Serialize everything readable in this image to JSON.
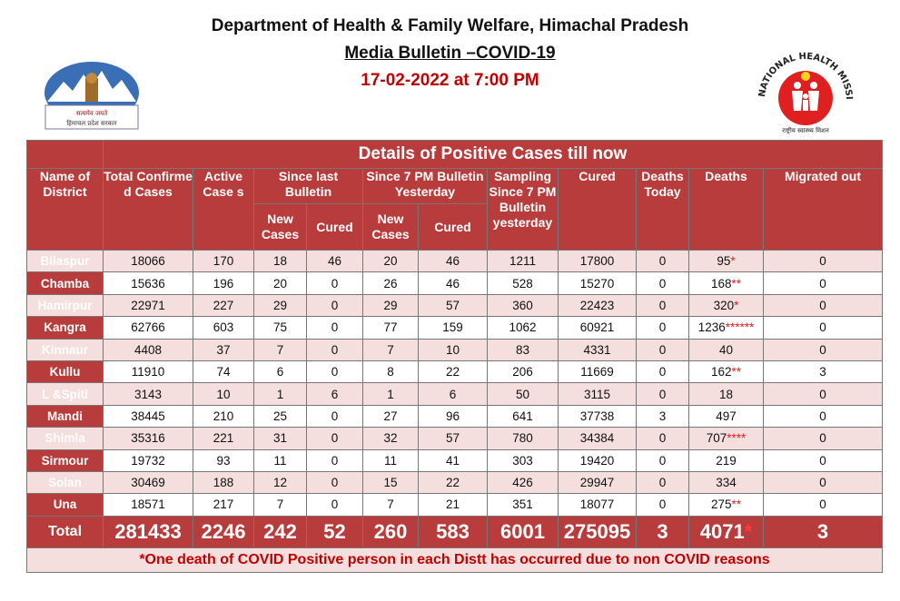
{
  "header": {
    "line1": "Department of Health & Family Welfare, Himachal Pradesh",
    "line2": "Media Bulletin –COVID-19",
    "line3": "17-02-2022 at 7:00 PM"
  },
  "logos": {
    "left_text1": "सत्यमेव जयते",
    "left_text2": "हिमाचल प्रदेश सरकार",
    "right_ring": "NATIONAL HEALTH MISSION",
    "right_caption": "राष्ट्रीय स्वास्थ्य मिशन",
    "accent": "#e02020"
  },
  "table": {
    "title": "Details of Positive Cases till now",
    "headers": {
      "district": "Name of District",
      "total_confirmed": "Total Confirme d Cases",
      "active": "Active Case s",
      "since_last": "Since last Bulletin",
      "since_7pm": "Since 7 PM Bulletin Yesterday",
      "new_cases": "New Cases",
      "cured": "Cured",
      "sampling": "Sampling Since 7 PM Bulletin yesterday",
      "cured_total": "Cured",
      "deaths_today": "Deaths Today",
      "deaths": "Deaths",
      "migrated": "Migrated out"
    },
    "rows": [
      {
        "district": "Bilaspur",
        "total": "18066",
        "active": "170",
        "l_new": "18",
        "l_cured": "46",
        "y_new": "20",
        "y_cured": "46",
        "sampling": "1211",
        "cured": "17800",
        "deaths_today": "0",
        "deaths": "95",
        "deaths_mark": "*",
        "migrated": "0"
      },
      {
        "district": "Chamba",
        "total": "15636",
        "active": "196",
        "l_new": "20",
        "l_cured": "0",
        "y_new": "26",
        "y_cured": "46",
        "sampling": "528",
        "cured": "15270",
        "deaths_today": "0",
        "deaths": "168",
        "deaths_mark": "**",
        "migrated": "0"
      },
      {
        "district": "Hamirpur",
        "total": "22971",
        "active": "227",
        "l_new": "29",
        "l_cured": "0",
        "y_new": "29",
        "y_cured": "57",
        "sampling": "360",
        "cured": "22423",
        "deaths_today": "0",
        "deaths": "320",
        "deaths_mark": "*",
        "migrated": "0"
      },
      {
        "district": "Kangra",
        "total": "62766",
        "active": "603",
        "l_new": "75",
        "l_cured": "0",
        "y_new": "77",
        "y_cured": "159",
        "sampling": "1062",
        "cured": "60921",
        "deaths_today": "0",
        "deaths": "1236",
        "deaths_mark": "******",
        "migrated": "0"
      },
      {
        "district": "Kinnaur",
        "total": "4408",
        "active": "37",
        "l_new": "7",
        "l_cured": "0",
        "y_new": "7",
        "y_cured": "10",
        "sampling": "83",
        "cured": "4331",
        "deaths_today": "0",
        "deaths": "40",
        "deaths_mark": "",
        "migrated": "0"
      },
      {
        "district": "Kullu",
        "total": "11910",
        "active": "74",
        "l_new": "6",
        "l_cured": "0",
        "y_new": "8",
        "y_cured": "22",
        "sampling": "206",
        "cured": "11669",
        "deaths_today": "0",
        "deaths": "162",
        "deaths_mark": "**",
        "migrated": "3"
      },
      {
        "district": "L &Spiti",
        "total": "3143",
        "active": "10",
        "l_new": "1",
        "l_cured": "6",
        "y_new": "1",
        "y_cured": "6",
        "sampling": "50",
        "cured": "3115",
        "deaths_today": "0",
        "deaths": "18",
        "deaths_mark": "",
        "migrated": "0"
      },
      {
        "district": "Mandi",
        "total": "38445",
        "active": "210",
        "l_new": "25",
        "l_cured": "0",
        "y_new": "27",
        "y_cured": "96",
        "sampling": "641",
        "cured": "37738",
        "deaths_today": "3",
        "deaths": "497",
        "deaths_mark": "",
        "migrated": "0"
      },
      {
        "district": "Shimla",
        "total": "35316",
        "active": "221",
        "l_new": "31",
        "l_cured": "0",
        "y_new": "32",
        "y_cured": "57",
        "sampling": "780",
        "cured": "34384",
        "deaths_today": "0",
        "deaths": "707",
        "deaths_mark": "****",
        "migrated": "0"
      },
      {
        "district": "Sirmour",
        "total": "19732",
        "active": "93",
        "l_new": "11",
        "l_cured": "0",
        "y_new": "11",
        "y_cured": "41",
        "sampling": "303",
        "cured": "19420",
        "deaths_today": "0",
        "deaths": "219",
        "deaths_mark": "",
        "migrated": "0"
      },
      {
        "district": "Solan",
        "total": "30469",
        "active": "188",
        "l_new": "12",
        "l_cured": "0",
        "y_new": "15",
        "y_cured": "22",
        "sampling": "426",
        "cured": "29947",
        "deaths_today": "0",
        "deaths": "334",
        "deaths_mark": "",
        "migrated": "0"
      },
      {
        "district": "Una",
        "total": "18571",
        "active": "217",
        "l_new": "7",
        "l_cured": "0",
        "y_new": "7",
        "y_cured": "21",
        "sampling": "351",
        "cured": "18077",
        "deaths_today": "0",
        "deaths": "275",
        "deaths_mark": "**",
        "migrated": "0"
      }
    ],
    "total": {
      "label": "Total",
      "total": "281433",
      "active": "2246",
      "l_new": "242",
      "l_cured": "52",
      "y_new": "260",
      "y_cured": "583",
      "sampling": "6001",
      "cured": "275095",
      "deaths_today": "3",
      "deaths": "4071",
      "deaths_mark": "*",
      "migrated": "3"
    },
    "footnote": "*One death of COVID Positive person in each Distt has occurred due to non COVID reasons"
  }
}
